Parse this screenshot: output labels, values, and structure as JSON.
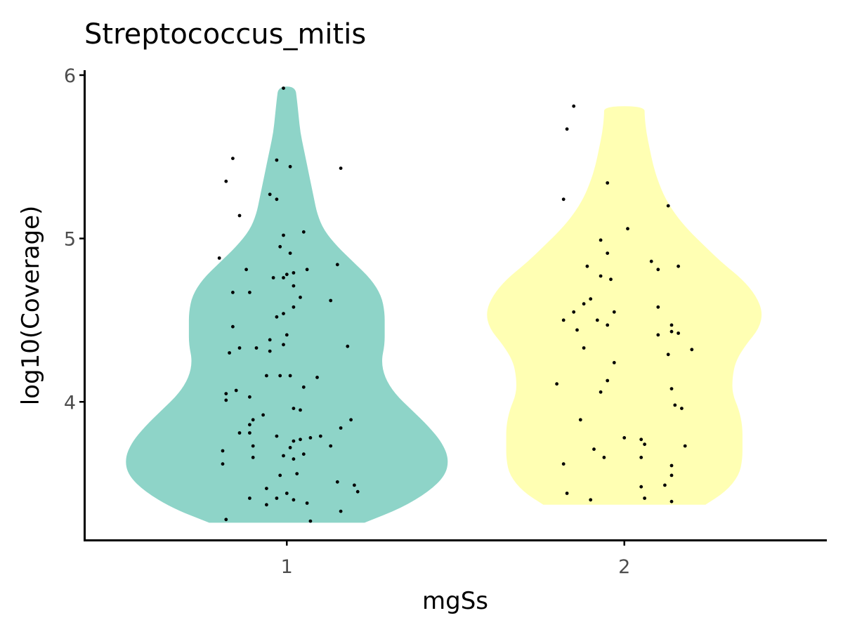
{
  "chart_data": {
    "type": "violin",
    "title": "Streptococcus_mitis",
    "xlabel": "mgSs",
    "ylabel": "log10(Coverage)",
    "categories": [
      "1",
      "2"
    ],
    "yticks": [
      "4",
      "5",
      "6"
    ],
    "ylim": [
      3.15,
      6.03
    ],
    "xlim": [
      0.4,
      2.6
    ],
    "grid": false,
    "legend": "none",
    "colors": {
      "group_1": "#8ED4C8",
      "group_2": "#FFFFB3",
      "points": "#000000",
      "axis": "#000000"
    },
    "violins": [
      {
        "category": "1",
        "min": 3.26,
        "max": 5.93,
        "profile": [
          [
            3.26,
            0.23
          ],
          [
            3.35,
            0.34
          ],
          [
            3.45,
            0.42
          ],
          [
            3.55,
            0.47
          ],
          [
            3.65,
            0.48
          ],
          [
            3.75,
            0.46
          ],
          [
            3.85,
            0.42
          ],
          [
            3.95,
            0.37
          ],
          [
            4.05,
            0.32
          ],
          [
            4.15,
            0.29
          ],
          [
            4.25,
            0.28
          ],
          [
            4.35,
            0.29
          ],
          [
            4.45,
            0.29
          ],
          [
            4.55,
            0.29
          ],
          [
            4.65,
            0.28
          ],
          [
            4.75,
            0.25
          ],
          [
            4.85,
            0.2
          ],
          [
            4.95,
            0.15
          ],
          [
            5.05,
            0.11
          ],
          [
            5.15,
            0.09
          ],
          [
            5.25,
            0.08
          ],
          [
            5.35,
            0.07
          ],
          [
            5.45,
            0.06
          ],
          [
            5.55,
            0.05
          ],
          [
            5.65,
            0.04
          ],
          [
            5.75,
            0.035
          ],
          [
            5.85,
            0.03
          ],
          [
            5.93,
            0.025
          ]
        ],
        "points": [
          [
            0.82,
            3.28
          ],
          [
            1.07,
            3.27
          ],
          [
            0.94,
            3.37
          ],
          [
            1.06,
            3.38
          ],
          [
            1.16,
            3.33
          ],
          [
            1.02,
            3.4
          ],
          [
            0.89,
            3.41
          ],
          [
            0.97,
            3.41
          ],
          [
            1.0,
            3.44
          ],
          [
            0.94,
            3.47
          ],
          [
            1.15,
            3.51
          ],
          [
            1.2,
            3.49
          ],
          [
            1.21,
            3.45
          ],
          [
            0.98,
            3.55
          ],
          [
            1.03,
            3.56
          ],
          [
            0.81,
            3.62
          ],
          [
            0.9,
            3.66
          ],
          [
            0.99,
            3.67
          ],
          [
            1.02,
            3.65
          ],
          [
            0.81,
            3.7
          ],
          [
            0.9,
            3.73
          ],
          [
            1.01,
            3.72
          ],
          [
            1.05,
            3.68
          ],
          [
            1.13,
            3.73
          ],
          [
            1.02,
            3.76
          ],
          [
            1.04,
            3.77
          ],
          [
            1.07,
            3.78
          ],
          [
            1.1,
            3.79
          ],
          [
            0.97,
            3.79
          ],
          [
            0.89,
            3.81
          ],
          [
            0.86,
            3.81
          ],
          [
            1.16,
            3.84
          ],
          [
            0.89,
            3.86
          ],
          [
            0.9,
            3.89
          ],
          [
            0.93,
            3.92
          ],
          [
            1.19,
            3.89
          ],
          [
            1.02,
            3.96
          ],
          [
            1.04,
            3.95
          ],
          [
            0.82,
            4.01
          ],
          [
            0.82,
            4.05
          ],
          [
            0.89,
            4.03
          ],
          [
            0.85,
            4.07
          ],
          [
            1.05,
            4.09
          ],
          [
            0.94,
            4.16
          ],
          [
            0.98,
            4.16
          ],
          [
            1.01,
            4.16
          ],
          [
            1.09,
            4.15
          ],
          [
            0.83,
            4.3
          ],
          [
            0.86,
            4.33
          ],
          [
            0.91,
            4.33
          ],
          [
            0.95,
            4.31
          ],
          [
            0.99,
            4.35
          ],
          [
            1.18,
            4.34
          ],
          [
            0.95,
            4.38
          ],
          [
            1.0,
            4.41
          ],
          [
            0.84,
            4.46
          ],
          [
            0.97,
            4.52
          ],
          [
            0.99,
            4.54
          ],
          [
            1.02,
            4.58
          ],
          [
            1.04,
            4.64
          ],
          [
            1.13,
            4.62
          ],
          [
            0.84,
            4.67
          ],
          [
            0.89,
            4.67
          ],
          [
            1.02,
            4.71
          ],
          [
            0.96,
            4.76
          ],
          [
            1.0,
            4.78
          ],
          [
            0.99,
            4.76
          ],
          [
            1.02,
            4.79
          ],
          [
            1.06,
            4.81
          ],
          [
            0.88,
            4.81
          ],
          [
            1.15,
            4.84
          ],
          [
            0.8,
            4.88
          ],
          [
            1.01,
            4.91
          ],
          [
            0.98,
            4.95
          ],
          [
            0.99,
            5.02
          ],
          [
            1.05,
            5.04
          ],
          [
            0.86,
            5.14
          ],
          [
            0.97,
            5.24
          ],
          [
            0.95,
            5.27
          ],
          [
            0.82,
            5.35
          ],
          [
            1.16,
            5.43
          ],
          [
            1.01,
            5.44
          ],
          [
            0.97,
            5.48
          ],
          [
            0.84,
            5.49
          ],
          [
            0.99,
            5.92
          ]
        ]
      },
      {
        "category": "2",
        "min": 3.37,
        "max": 5.81,
        "profile": [
          [
            3.37,
            0.24
          ],
          [
            3.45,
            0.3
          ],
          [
            3.55,
            0.34
          ],
          [
            3.65,
            0.35
          ],
          [
            3.75,
            0.35
          ],
          [
            3.85,
            0.35
          ],
          [
            3.95,
            0.34
          ],
          [
            4.05,
            0.32
          ],
          [
            4.15,
            0.32
          ],
          [
            4.25,
            0.33
          ],
          [
            4.35,
            0.36
          ],
          [
            4.45,
            0.4
          ],
          [
            4.55,
            0.41
          ],
          [
            4.65,
            0.39
          ],
          [
            4.75,
            0.35
          ],
          [
            4.85,
            0.29
          ],
          [
            4.95,
            0.24
          ],
          [
            5.05,
            0.19
          ],
          [
            5.15,
            0.15
          ],
          [
            5.25,
            0.12
          ],
          [
            5.35,
            0.1
          ],
          [
            5.45,
            0.085
          ],
          [
            5.55,
            0.075
          ],
          [
            5.65,
            0.065
          ],
          [
            5.75,
            0.06
          ],
          [
            5.81,
            0.06
          ]
        ],
        "points": [
          [
            1.83,
            3.44
          ],
          [
            1.9,
            3.4
          ],
          [
            2.05,
            3.48
          ],
          [
            2.06,
            3.41
          ],
          [
            2.12,
            3.49
          ],
          [
            2.14,
            3.55
          ],
          [
            2.14,
            3.39
          ],
          [
            1.82,
            3.62
          ],
          [
            1.94,
            3.66
          ],
          [
            2.05,
            3.66
          ],
          [
            2.14,
            3.61
          ],
          [
            1.91,
            3.71
          ],
          [
            2.0,
            3.78
          ],
          [
            2.05,
            3.77
          ],
          [
            2.06,
            3.74
          ],
          [
            2.18,
            3.73
          ],
          [
            1.87,
            3.89
          ],
          [
            2.15,
            3.98
          ],
          [
            2.17,
            3.96
          ],
          [
            1.93,
            4.06
          ],
          [
            2.14,
            4.08
          ],
          [
            1.8,
            4.11
          ],
          [
            1.95,
            4.13
          ],
          [
            1.97,
            4.24
          ],
          [
            2.13,
            4.29
          ],
          [
            2.2,
            4.32
          ],
          [
            1.88,
            4.33
          ],
          [
            2.1,
            4.41
          ],
          [
            2.14,
            4.43
          ],
          [
            2.16,
            4.42
          ],
          [
            2.14,
            4.47
          ],
          [
            1.86,
            4.44
          ],
          [
            1.82,
            4.5
          ],
          [
            1.92,
            4.5
          ],
          [
            1.95,
            4.47
          ],
          [
            1.97,
            4.55
          ],
          [
            2.1,
            4.58
          ],
          [
            1.85,
            4.55
          ],
          [
            1.88,
            4.6
          ],
          [
            1.9,
            4.63
          ],
          [
            1.89,
            4.83
          ],
          [
            1.93,
            4.77
          ],
          [
            1.96,
            4.75
          ],
          [
            2.08,
            4.86
          ],
          [
            2.1,
            4.81
          ],
          [
            2.16,
            4.83
          ],
          [
            1.93,
            4.99
          ],
          [
            1.95,
            4.91
          ],
          [
            2.01,
            5.06
          ],
          [
            2.13,
            5.2
          ],
          [
            1.82,
            5.24
          ],
          [
            1.95,
            5.34
          ],
          [
            1.83,
            5.67
          ],
          [
            1.85,
            5.81
          ]
        ]
      }
    ]
  }
}
